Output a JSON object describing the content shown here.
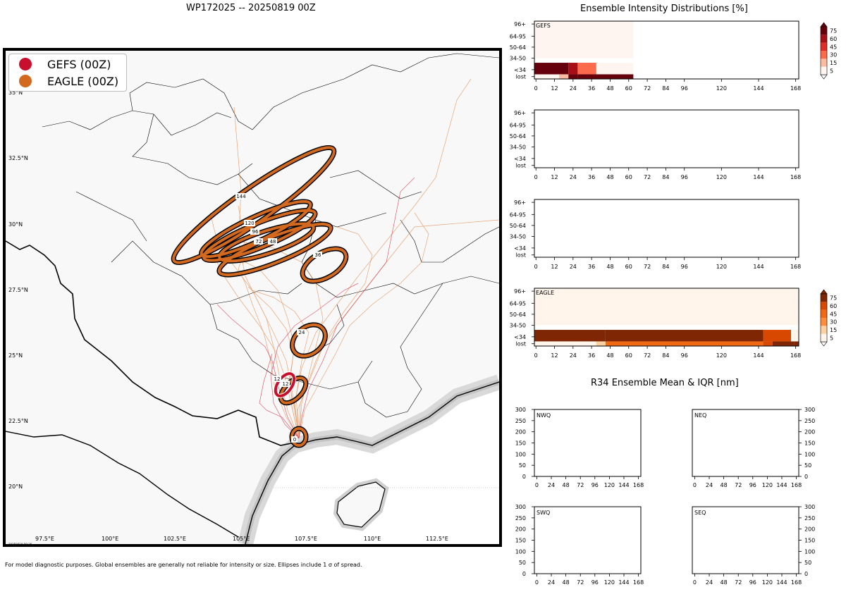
{
  "map": {
    "title": "WP172025 -- 20250819 00Z",
    "legend": [
      {
        "label": "GEFS (00Z)",
        "color": "#c8102e"
      },
      {
        "label": "EAGLE (00Z)",
        "color": "#d2691e"
      }
    ],
    "lat_labels": [
      "35°N",
      "32.5°N",
      "30°N",
      "27.5°N",
      "25°N",
      "22.5°N",
      "20°N"
    ],
    "lon_labels": [
      "97.5°E",
      "100°E",
      "102.5°E",
      "105°E",
      "107.5°E",
      "110°E",
      "112.5°E"
    ],
    "stamp": "20250819-09:26",
    "footnote": "For model diagnostic purposes. Global ensembles are generally not reliable for intensity or size. Ellipses include 1 σ of spread.",
    "ellipse_labels_eagle": [
      "144",
      "120",
      "96",
      "72",
      "48",
      "36",
      "24",
      "12",
      "0"
    ],
    "ellipse_labels_gefs": [
      "12"
    ]
  },
  "chart_data": [
    {
      "type": "heatmap",
      "title": "Ensemble Intensity Distributions [%]",
      "panel_label": "GEFS",
      "x_ticks": [
        0,
        12,
        24,
        36,
        48,
        60,
        72,
        84,
        96,
        120,
        144,
        168
      ],
      "y_categories": [
        "96+",
        "64-95",
        "50-64",
        "34-50",
        "<34",
        "lost"
      ],
      "xlim": [
        -1,
        170
      ],
      "colorbar": {
        "ticks": [
          5,
          15,
          30,
          45,
          60,
          75
        ],
        "colors": [
          "#fff5f0",
          "#fcbba1",
          "#fb6a4a",
          "#de2d26",
          "#a50f15",
          "#67000d"
        ]
      },
      "cells": [
        {
          "cat": "96+",
          "t0": -1,
          "t1": 63,
          "value": 3
        },
        {
          "cat": "64-95",
          "t0": -1,
          "t1": 63,
          "value": 3
        },
        {
          "cat": "50-64",
          "t0": -1,
          "t1": 63,
          "value": 3
        },
        {
          "cat": "34-50",
          "t0": -1,
          "t1": 63,
          "value": 3
        },
        {
          "cat": "<34",
          "t0": -1,
          "t1": 63,
          "value": 3
        },
        {
          "cat": "lost",
          "t0": -1,
          "t1": 63,
          "value": 3
        },
        {
          "cat": "<34",
          "t0": -1,
          "t1": 21,
          "value": 95
        },
        {
          "cat": "<34",
          "t0": 21,
          "t1": 27,
          "value": 55
        },
        {
          "cat": "<34",
          "t0": 27,
          "t1": 39,
          "value": 15
        },
        {
          "cat": "lost",
          "t0": 15,
          "t1": 21,
          "value": 10
        },
        {
          "cat": "lost",
          "t0": 21,
          "t1": 27,
          "value": 60
        },
        {
          "cat": "lost",
          "t0": 27,
          "t1": 63,
          "value": 95
        }
      ]
    },
    {
      "type": "heatmap",
      "title": "",
      "panel_label": "",
      "x_ticks": [
        0,
        12,
        24,
        36,
        48,
        60,
        72,
        84,
        96,
        120,
        144,
        168
      ],
      "y_categories": [
        "96+",
        "64-95",
        "50-64",
        "34-50",
        "<34",
        "lost"
      ],
      "xlim": [
        -1,
        170
      ],
      "cells": []
    },
    {
      "type": "heatmap",
      "title": "",
      "panel_label": "",
      "x_ticks": [
        0,
        12,
        24,
        36,
        48,
        60,
        72,
        84,
        96,
        120,
        144,
        168
      ],
      "y_categories": [
        "96+",
        "64-95",
        "50-64",
        "34-50",
        "<34",
        "lost"
      ],
      "xlim": [
        -1,
        170
      ],
      "cells": []
    },
    {
      "type": "heatmap",
      "title": "",
      "panel_label": "EAGLE",
      "x_ticks": [
        0,
        12,
        24,
        36,
        48,
        60,
        72,
        84,
        96,
        120,
        144,
        168
      ],
      "y_categories": [
        "96+",
        "64-95",
        "50-64",
        "34-50",
        "<34",
        "lost"
      ],
      "xlim": [
        -1,
        170
      ],
      "colorbar": {
        "ticks": [
          5,
          15,
          30,
          45,
          60,
          75
        ],
        "colors": [
          "#fff5eb",
          "#fdd0a2",
          "#fd8d3c",
          "#f16913",
          "#d94801",
          "#7f2704"
        ]
      },
      "cells": [
        {
          "cat": "96+",
          "t0": -1,
          "t1": 170,
          "value": 3
        },
        {
          "cat": "64-95",
          "t0": -1,
          "t1": 170,
          "value": 3
        },
        {
          "cat": "50-64",
          "t0": -1,
          "t1": 170,
          "value": 3
        },
        {
          "cat": "34-50",
          "t0": -1,
          "t1": 170,
          "value": 3
        },
        {
          "cat": "<34",
          "t0": -1,
          "t1": 45,
          "value": 90
        },
        {
          "cat": "<34",
          "t0": 45,
          "t1": 147,
          "value": 70
        },
        {
          "cat": "<34",
          "t0": 147,
          "t1": 165,
          "value": 45
        },
        {
          "cat": "<34",
          "t0": 165,
          "t1": 170,
          "value": 3
        },
        {
          "cat": "lost",
          "t0": -1,
          "t1": 39,
          "value": 3
        },
        {
          "cat": "lost",
          "t0": 39,
          "t1": 45,
          "value": 10
        },
        {
          "cat": "lost",
          "t0": 45,
          "t1": 147,
          "value": 40
        },
        {
          "cat": "lost",
          "t0": 147,
          "t1": 153,
          "value": 50
        },
        {
          "cat": "lost",
          "t0": 153,
          "t1": 167,
          "value": 65
        },
        {
          "cat": "lost",
          "t0": 167,
          "t1": 170,
          "value": 80
        }
      ]
    },
    {
      "type": "line",
      "title": "R34 Ensemble Mean & IQR [nm]",
      "quadrants": [
        "NWQ",
        "NEQ",
        "SWQ",
        "SEQ"
      ],
      "x_ticks": [
        0,
        24,
        48,
        72,
        96,
        120,
        144,
        168
      ],
      "y_ticks": [
        0,
        50,
        100,
        150,
        200,
        250,
        300
      ],
      "xlim": [
        -4,
        172
      ],
      "ylim": [
        0,
        300
      ],
      "series": []
    }
  ]
}
